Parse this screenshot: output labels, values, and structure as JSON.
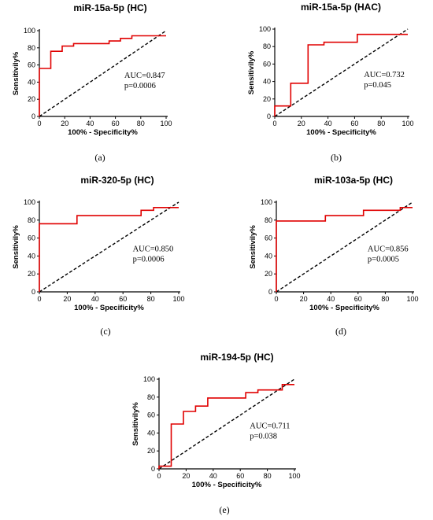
{
  "chart_data": [
    {
      "type": "line",
      "title": "miR-15a-5p (HC)",
      "xlabel": "100% - Specificity%",
      "ylabel": "Sensitivily%",
      "xlim": [
        0,
        100
      ],
      "ylim": [
        0,
        100
      ],
      "xticks": [
        "0",
        "20",
        "40",
        "60",
        "80",
        "100"
      ],
      "yticks": [
        "0",
        "20",
        "40",
        "60",
        "80",
        "100"
      ],
      "roc_x": [
        0,
        0,
        9,
        9,
        18,
        18,
        27,
        27,
        55,
        55,
        64,
        64,
        73,
        73,
        100
      ],
      "roc_y": [
        0,
        56,
        56,
        76,
        76,
        82,
        82,
        85,
        85,
        88,
        88,
        91,
        91,
        94,
        94
      ],
      "annotation": [
        "AUC=0.847",
        "p=0.0006"
      ],
      "caption": "(a)",
      "colors": {
        "roc": "#e00000",
        "reference": "#000000"
      }
    },
    {
      "type": "line",
      "title": "miR-15a-5p (HAC)",
      "xlabel": "100% - Specificity%",
      "ylabel": "Sensitivily%",
      "xlim": [
        0,
        100
      ],
      "ylim": [
        0,
        100
      ],
      "xticks": [
        "0",
        "20",
        "40",
        "60",
        "80",
        "100"
      ],
      "yticks": [
        "0",
        "20",
        "40",
        "60",
        "80",
        "100"
      ],
      "roc_x": [
        0,
        0,
        12,
        12,
        25,
        25,
        37,
        37,
        62,
        62,
        100
      ],
      "roc_y": [
        0,
        12,
        12,
        38,
        38,
        82,
        82,
        85,
        85,
        94,
        94
      ],
      "annotation": [
        "AUC=0.732",
        "p=0.045"
      ],
      "caption": "(b)",
      "colors": {
        "roc": "#e00000",
        "reference": "#000000"
      }
    },
    {
      "type": "line",
      "title": "miR-320-5p (HC)",
      "xlabel": "100% - Specificity%",
      "ylabel": "Sensitivily%",
      "xlim": [
        0,
        100
      ],
      "ylim": [
        0,
        100
      ],
      "xticks": [
        "0",
        "20",
        "40",
        "60",
        "80",
        "100"
      ],
      "yticks": [
        "0",
        "20",
        "40",
        "60",
        "80",
        "100"
      ],
      "roc_x": [
        0,
        0,
        27,
        27,
        73,
        73,
        82,
        82,
        100
      ],
      "roc_y": [
        0,
        76,
        76,
        85,
        85,
        91,
        91,
        94,
        94
      ],
      "annotation": [
        "AUC=0.850",
        "p=0.0006"
      ],
      "caption": "(c)",
      "colors": {
        "roc": "#e00000",
        "reference": "#000000"
      }
    },
    {
      "type": "line",
      "title": "miR-103a-5p (HC)",
      "xlabel": "100% - Specificity%",
      "ylabel": "Sensitivily%",
      "xlim": [
        0,
        100
      ],
      "ylim": [
        0,
        100
      ],
      "xticks": [
        "0",
        "20",
        "40",
        "60",
        "80",
        "100"
      ],
      "yticks": [
        "0",
        "20",
        "40",
        "60",
        "80",
        "100"
      ],
      "roc_x": [
        0,
        0,
        36,
        36,
        64,
        64,
        91,
        91,
        100
      ],
      "roc_y": [
        0,
        79,
        79,
        85,
        85,
        91,
        91,
        94,
        94
      ],
      "annotation": [
        "AUC=0.856",
        "p=0.0005"
      ],
      "caption": "(d)",
      "colors": {
        "roc": "#e00000",
        "reference": "#000000"
      }
    },
    {
      "type": "line",
      "title": "miR-194-5p (HC)",
      "xlabel": "100% - Specificity%",
      "ylabel": "Sensitivily%",
      "xlim": [
        0,
        100
      ],
      "ylim": [
        0,
        100
      ],
      "xticks": [
        "0",
        "20",
        "40",
        "60",
        "80",
        "100"
      ],
      "yticks": [
        "0",
        "20",
        "40",
        "60",
        "80",
        "100"
      ],
      "roc_x": [
        0,
        0,
        9,
        9,
        18,
        18,
        27,
        27,
        36,
        36,
        64,
        64,
        73,
        73,
        91,
        91,
        100
      ],
      "roc_y": [
        0,
        3,
        3,
        50,
        50,
        64,
        64,
        70,
        70,
        79,
        79,
        85,
        85,
        88,
        88,
        94,
        94
      ],
      "annotation": [
        "AUC=0.711",
        "p=0.038"
      ],
      "caption": "(e)",
      "colors": {
        "roc": "#e00000",
        "reference": "#000000"
      }
    }
  ]
}
